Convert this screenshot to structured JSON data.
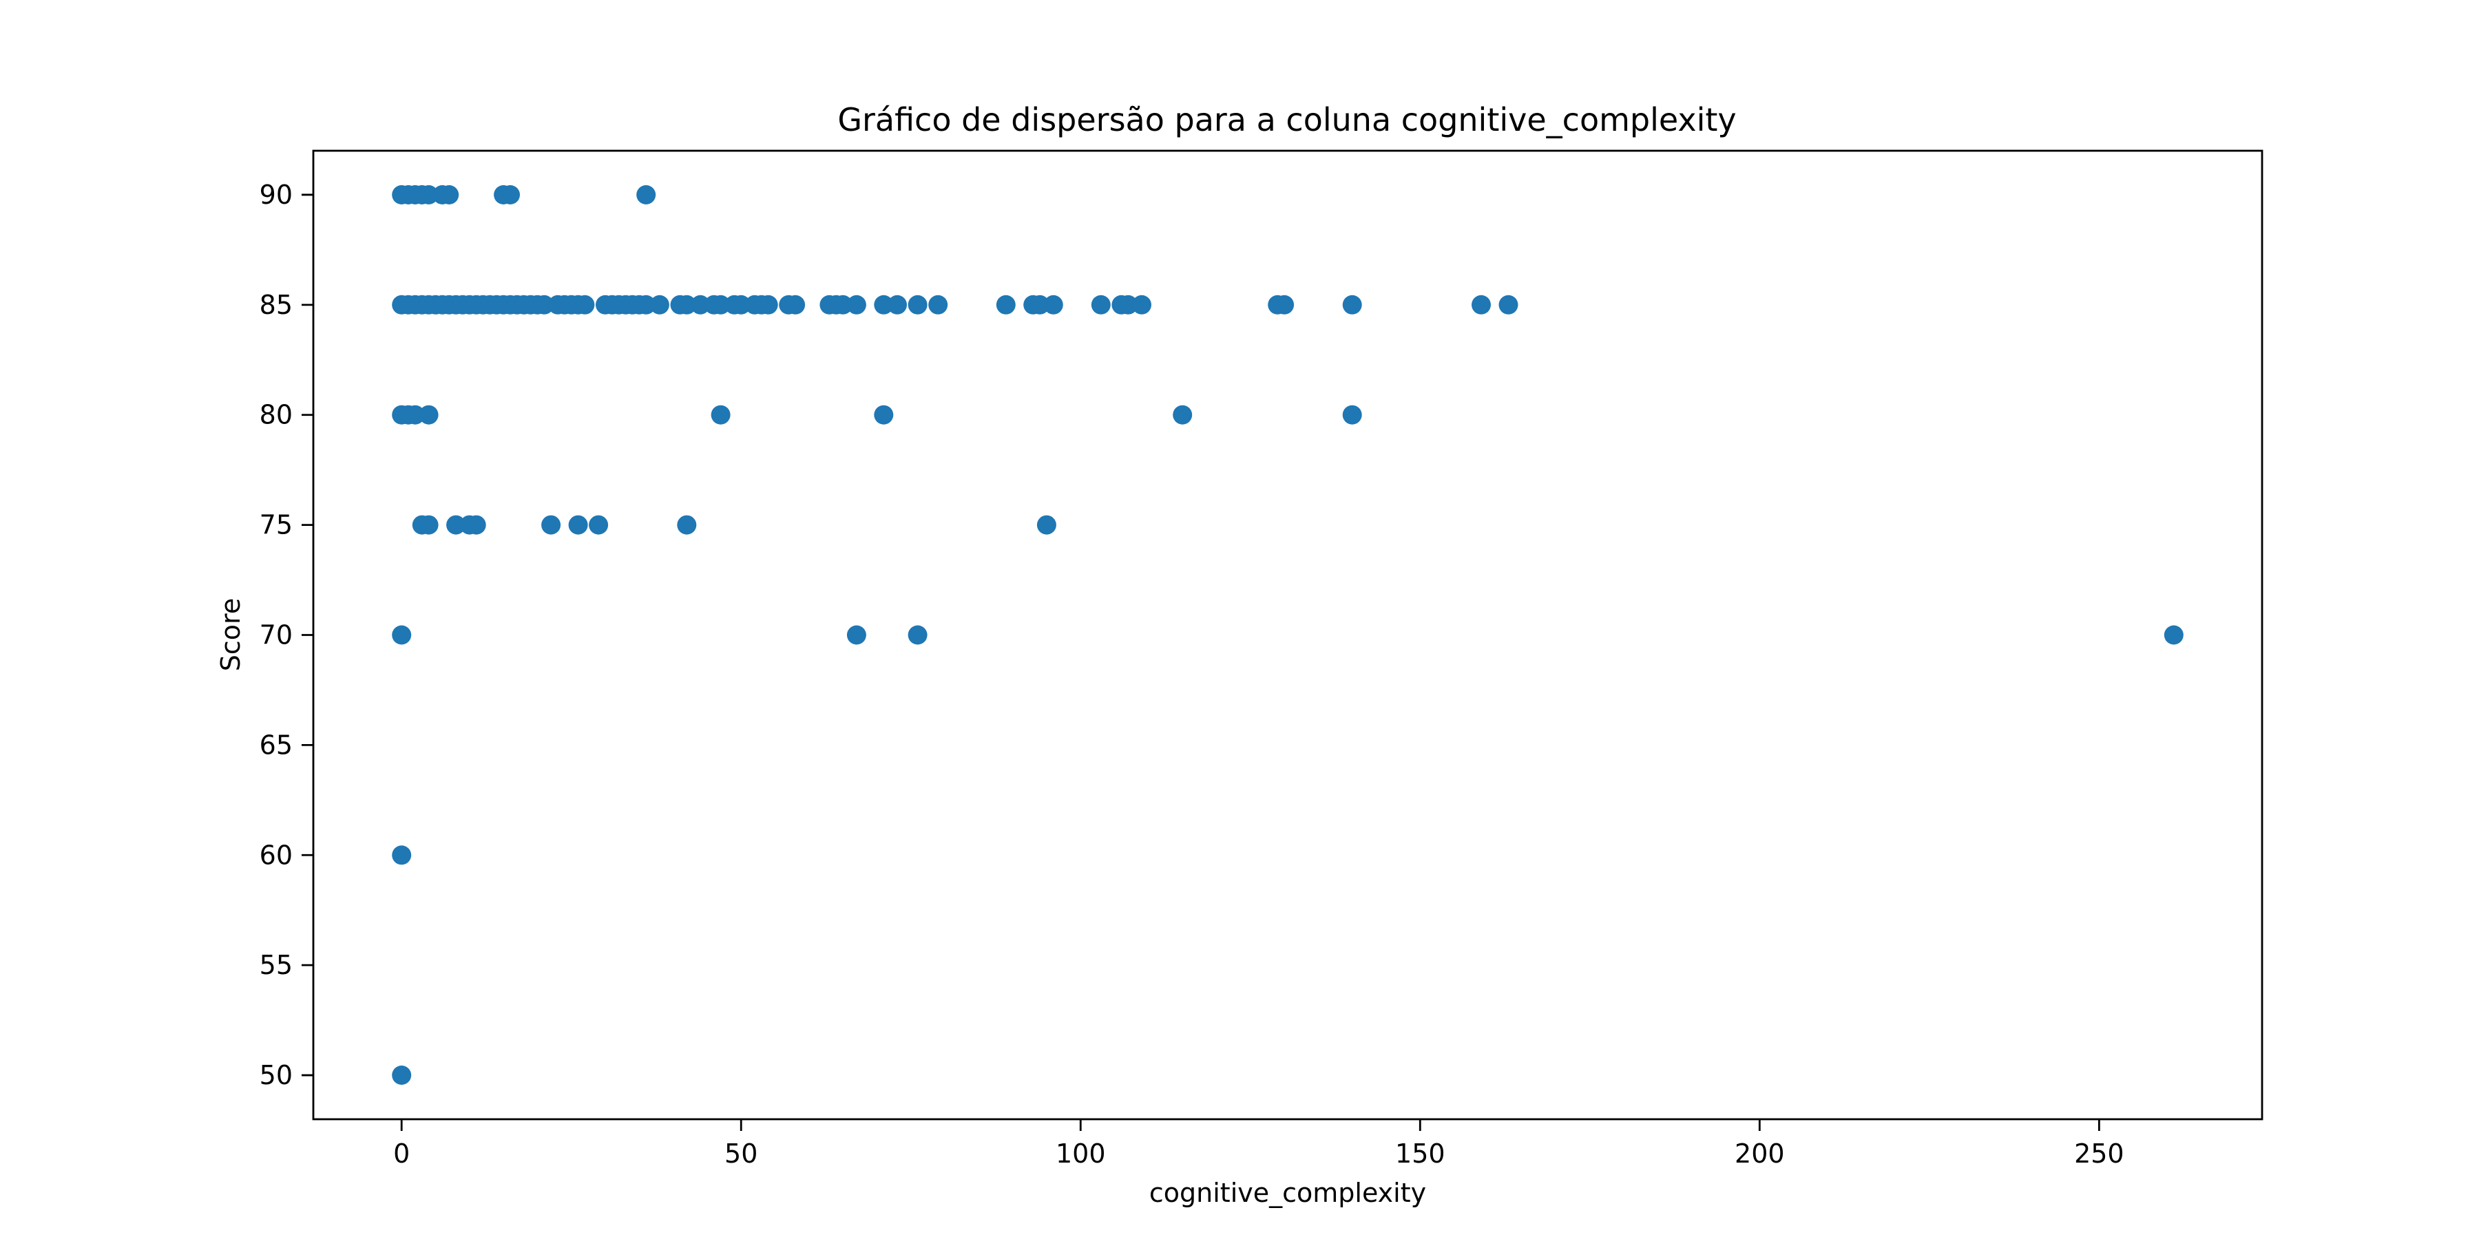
{
  "chart_data": {
    "type": "scatter",
    "title": "Gráfico de dispersão para a coluna cognitive_complexity",
    "xlabel": "cognitive_complexity",
    "ylabel": "Score",
    "xlim": [
      -13,
      274
    ],
    "ylim": [
      48,
      92
    ],
    "xticks": [
      0,
      50,
      100,
      150,
      200,
      250
    ],
    "yticks": [
      50,
      55,
      60,
      65,
      70,
      75,
      80,
      85,
      90
    ],
    "grid": false,
    "legend": "none",
    "marker_color": "#1f77b4",
    "series": [
      {
        "points": [
          [
            0,
            90
          ],
          [
            1,
            90
          ],
          [
            2,
            90
          ],
          [
            3,
            90
          ],
          [
            4,
            90
          ],
          [
            6,
            90
          ],
          [
            7,
            90
          ],
          [
            15,
            90
          ],
          [
            16,
            90
          ],
          [
            36,
            90
          ],
          [
            0,
            85
          ],
          [
            1,
            85
          ],
          [
            2,
            85
          ],
          [
            3,
            85
          ],
          [
            4,
            85
          ],
          [
            5,
            85
          ],
          [
            6,
            85
          ],
          [
            7,
            85
          ],
          [
            8,
            85
          ],
          [
            9,
            85
          ],
          [
            10,
            85
          ],
          [
            11,
            85
          ],
          [
            12,
            85
          ],
          [
            13,
            85
          ],
          [
            14,
            85
          ],
          [
            15,
            85
          ],
          [
            16,
            85
          ],
          [
            17,
            85
          ],
          [
            18,
            85
          ],
          [
            19,
            85
          ],
          [
            20,
            85
          ],
          [
            21,
            85
          ],
          [
            23,
            85
          ],
          [
            24,
            85
          ],
          [
            25,
            85
          ],
          [
            26,
            85
          ],
          [
            27,
            85
          ],
          [
            30,
            85
          ],
          [
            31,
            85
          ],
          [
            32,
            85
          ],
          [
            33,
            85
          ],
          [
            34,
            85
          ],
          [
            35,
            85
          ],
          [
            36,
            85
          ],
          [
            38,
            85
          ],
          [
            41,
            85
          ],
          [
            42,
            85
          ],
          [
            44,
            85
          ],
          [
            46,
            85
          ],
          [
            47,
            85
          ],
          [
            49,
            85
          ],
          [
            50,
            85
          ],
          [
            52,
            85
          ],
          [
            53,
            85
          ],
          [
            54,
            85
          ],
          [
            57,
            85
          ],
          [
            58,
            85
          ],
          [
            63,
            85
          ],
          [
            64,
            85
          ],
          [
            65,
            85
          ],
          [
            67,
            85
          ],
          [
            71,
            85
          ],
          [
            73,
            85
          ],
          [
            76,
            85
          ],
          [
            79,
            85
          ],
          [
            89,
            85
          ],
          [
            93,
            85
          ],
          [
            94,
            85
          ],
          [
            96,
            85
          ],
          [
            103,
            85
          ],
          [
            106,
            85
          ],
          [
            107,
            85
          ],
          [
            109,
            85
          ],
          [
            129,
            85
          ],
          [
            130,
            85
          ],
          [
            140,
            85
          ],
          [
            159,
            85
          ],
          [
            163,
            85
          ],
          [
            0,
            80
          ],
          [
            1,
            80
          ],
          [
            2,
            80
          ],
          [
            4,
            80
          ],
          [
            47,
            80
          ],
          [
            71,
            80
          ],
          [
            115,
            80
          ],
          [
            140,
            80
          ],
          [
            3,
            75
          ],
          [
            4,
            75
          ],
          [
            8,
            75
          ],
          [
            10,
            75
          ],
          [
            11,
            75
          ],
          [
            22,
            75
          ],
          [
            26,
            75
          ],
          [
            29,
            75
          ],
          [
            42,
            75
          ],
          [
            95,
            75
          ],
          [
            0,
            70
          ],
          [
            67,
            70
          ],
          [
            76,
            70
          ],
          [
            261,
            70
          ],
          [
            0,
            60
          ],
          [
            0,
            50
          ]
        ]
      }
    ]
  }
}
